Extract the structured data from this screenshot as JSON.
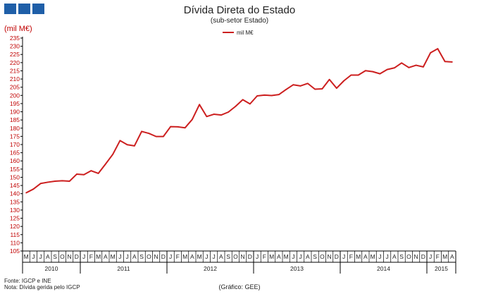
{
  "chart_data": {
    "type": "line",
    "title": "Dívida Direta do Estado",
    "subtitle": "(sub-setor  Estado)",
    "unit_label": "(mil M€)",
    "ylim": [
      105,
      235
    ],
    "y_tick_step": 5,
    "grid": false,
    "legend_position": "top-center",
    "months": [
      "M",
      "J",
      "J",
      "A",
      "S",
      "O",
      "N",
      "D",
      "J",
      "F",
      "M",
      "A",
      "M",
      "J",
      "J",
      "A",
      "S",
      "O",
      "N",
      "D",
      "J",
      "F",
      "M",
      "A",
      "M",
      "J",
      "J",
      "A",
      "S",
      "O",
      "N",
      "D",
      "J",
      "F",
      "M",
      "A",
      "M",
      "J",
      "J",
      "A",
      "S",
      "O",
      "N",
      "D",
      "J",
      "F",
      "M",
      "A",
      "M",
      "J",
      "J",
      "A",
      "S",
      "O",
      "N",
      "D",
      "J",
      "F",
      "M",
      "A"
    ],
    "years": [
      {
        "label": "2010",
        "count": 8
      },
      {
        "label": "2011",
        "count": 12
      },
      {
        "label": "2012",
        "count": 12
      },
      {
        "label": "2013",
        "count": 12
      },
      {
        "label": "2014",
        "count": 12
      },
      {
        "label": "2015",
        "count": 4
      }
    ],
    "series": [
      {
        "name": "mil M€",
        "color": "#cc1f1f",
        "values": [
          140.5,
          142.8,
          146.2,
          147.0,
          147.6,
          147.9,
          147.6,
          151.9,
          151.6,
          154.0,
          152.4,
          158.1,
          164.0,
          172.4,
          169.9,
          169.2,
          178.0,
          176.8,
          174.9,
          174.9,
          180.9,
          180.8,
          180.2,
          185.3,
          194.4,
          187.1,
          188.5,
          188.0,
          189.8,
          193.3,
          197.4,
          194.8,
          199.7,
          200.2,
          199.9,
          200.5,
          203.6,
          206.5,
          205.8,
          207.3,
          203.8,
          204.0,
          209.7,
          204.4,
          208.9,
          212.4,
          212.4,
          215.1,
          214.5,
          213.2,
          215.8,
          216.8,
          219.8,
          217.0,
          218.4,
          217.4,
          226.0,
          228.5,
          220.7,
          220.4
        ]
      }
    ]
  },
  "footer": {
    "source": "Fonte: IGCP e INE",
    "note": "Nota: Dívida gerida pelo IGCP",
    "credit": "(Gráfico:  GEE)"
  }
}
